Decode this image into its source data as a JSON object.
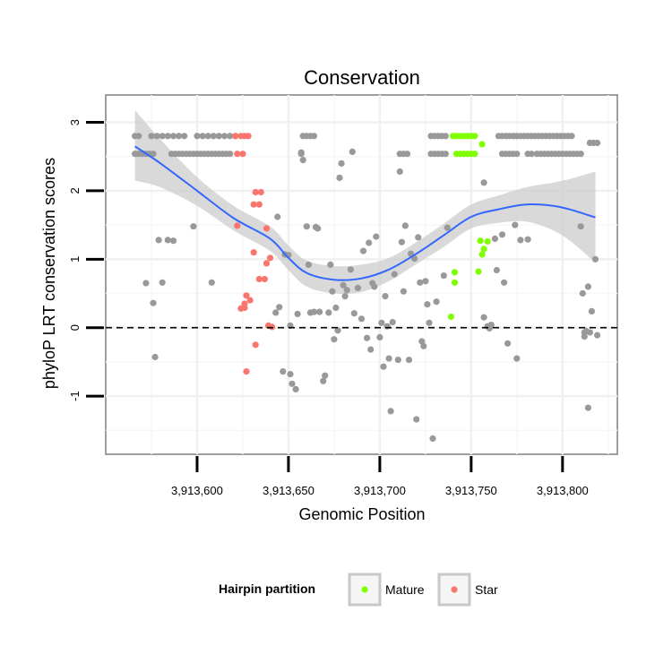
{
  "chart_data": {
    "type": "scatter",
    "title": "Conservation",
    "xlabel": "Genomic Position",
    "ylabel": "phyloP LRT conservation scores",
    "xlim": [
      3913550,
      3913830
    ],
    "ylim": [
      -1.85,
      3.4
    ],
    "x_ticks": [
      3913600,
      3913650,
      3913700,
      3913750,
      3913800
    ],
    "x_tick_labels": [
      "3,913,600",
      "3,913,650",
      "3,913,700",
      "3,913,750",
      "3,913,800"
    ],
    "y_ticks": [
      -1,
      0,
      1,
      2,
      3
    ],
    "y_tick_labels": [
      "-1",
      "0",
      "1",
      "2",
      "3"
    ],
    "reference_line": {
      "y": 0,
      "style": "dashed"
    },
    "legend": {
      "title": "Hairpin partition",
      "position": "bottom",
      "entries": [
        {
          "label": "Mature",
          "color": "#80ff00"
        },
        {
          "label": "Star",
          "color": "#f8766d"
        }
      ]
    },
    "colors": {
      "other": "#999999",
      "Mature": "#80ff00",
      "Star": "#f8766d",
      "smooth": "#3366ff",
      "band": "#cccccc"
    },
    "smooth_fit": {
      "x": [
        3913566,
        3913580,
        3913600,
        3913620,
        3913640,
        3913650,
        3913660,
        3913675,
        3913690,
        3913705,
        3913720,
        3913735,
        3913750,
        3913765,
        3913780,
        3913795,
        3913805,
        3913818
      ],
      "y": [
        2.65,
        2.4,
        2.0,
        1.6,
        1.3,
        1.02,
        0.8,
        0.7,
        0.72,
        0.85,
        1.08,
        1.35,
        1.62,
        1.73,
        1.8,
        1.78,
        1.72,
        1.61
      ],
      "lower": [
        2.15,
        2.05,
        1.78,
        1.42,
        1.12,
        0.84,
        0.6,
        0.5,
        0.52,
        0.68,
        0.93,
        1.18,
        1.45,
        1.53,
        1.55,
        1.42,
        1.25,
        0.95
      ],
      "upper": [
        3.18,
        2.75,
        2.2,
        1.78,
        1.48,
        1.2,
        0.98,
        0.9,
        0.92,
        1.02,
        1.25,
        1.52,
        1.8,
        1.93,
        2.05,
        2.12,
        2.18,
        2.28
      ]
    },
    "series": [
      {
        "name": "Other",
        "points": [
          [
            3913566,
            2.8
          ],
          [
            3913568,
            2.8
          ],
          [
            3913575,
            2.8
          ],
          [
            3913578,
            2.8
          ],
          [
            3913581,
            2.8
          ],
          [
            3913584,
            2.8
          ],
          [
            3913587,
            2.8
          ],
          [
            3913590,
            2.8
          ],
          [
            3913593,
            2.8
          ],
          [
            3913600,
            2.8
          ],
          [
            3913603,
            2.8
          ],
          [
            3913606,
            2.8
          ],
          [
            3913609,
            2.8
          ],
          [
            3913612,
            2.8
          ],
          [
            3913615,
            2.8
          ],
          [
            3913618,
            2.8
          ],
          [
            3913621,
            2.8
          ],
          [
            3913658,
            2.8
          ],
          [
            3913660,
            2.8
          ],
          [
            3913662,
            2.8
          ],
          [
            3913664,
            2.8
          ],
          [
            3913728,
            2.8
          ],
          [
            3913730,
            2.8
          ],
          [
            3913732,
            2.8
          ],
          [
            3913734,
            2.8
          ],
          [
            3913736,
            2.8
          ],
          [
            3913765,
            2.8
          ],
          [
            3913767,
            2.8
          ],
          [
            3913769,
            2.8
          ],
          [
            3913771,
            2.8
          ],
          [
            3913773,
            2.8
          ],
          [
            3913775,
            2.8
          ],
          [
            3913777,
            2.8
          ],
          [
            3913779,
            2.8
          ],
          [
            3913781,
            2.8
          ],
          [
            3913783,
            2.8
          ],
          [
            3913785,
            2.8
          ],
          [
            3913787,
            2.8
          ],
          [
            3913789,
            2.8
          ],
          [
            3913791,
            2.8
          ],
          [
            3913793,
            2.8
          ],
          [
            3913795,
            2.8
          ],
          [
            3913797,
            2.8
          ],
          [
            3913799,
            2.8
          ],
          [
            3913801,
            2.8
          ],
          [
            3913803,
            2.8
          ],
          [
            3913805,
            2.8
          ],
          [
            3913566,
            2.54
          ],
          [
            3913568,
            2.54
          ],
          [
            3913570,
            2.54
          ],
          [
            3913572,
            2.54
          ],
          [
            3913574,
            2.54
          ],
          [
            3913576,
            2.54
          ],
          [
            3913586,
            2.54
          ],
          [
            3913588,
            2.54
          ],
          [
            3913590,
            2.54
          ],
          [
            3913592,
            2.54
          ],
          [
            3913594,
            2.54
          ],
          [
            3913596,
            2.54
          ],
          [
            3913598,
            2.54
          ],
          [
            3913600,
            2.54
          ],
          [
            3913602,
            2.54
          ],
          [
            3913604,
            2.54
          ],
          [
            3913606,
            2.54
          ],
          [
            3913608,
            2.54
          ],
          [
            3913610,
            2.54
          ],
          [
            3913612,
            2.54
          ],
          [
            3913614,
            2.54
          ],
          [
            3913616,
            2.54
          ],
          [
            3913618,
            2.54
          ],
          [
            3913657,
            2.54
          ],
          [
            3913711,
            2.54
          ],
          [
            3913713,
            2.54
          ],
          [
            3913715,
            2.54
          ],
          [
            3913728,
            2.54
          ],
          [
            3913730,
            2.54
          ],
          [
            3913732,
            2.54
          ],
          [
            3913734,
            2.54
          ],
          [
            3913736,
            2.54
          ],
          [
            3913767,
            2.54
          ],
          [
            3913769,
            2.54
          ],
          [
            3913771,
            2.54
          ],
          [
            3913773,
            2.54
          ],
          [
            3913775,
            2.54
          ],
          [
            3913781,
            2.54
          ],
          [
            3913783,
            2.54
          ],
          [
            3913786,
            2.54
          ],
          [
            3913788,
            2.54
          ],
          [
            3913790,
            2.54
          ],
          [
            3913792,
            2.54
          ],
          [
            3913794,
            2.54
          ],
          [
            3913796,
            2.54
          ],
          [
            3913798,
            2.54
          ],
          [
            3913800,
            2.54
          ],
          [
            3913802,
            2.54
          ],
          [
            3913804,
            2.54
          ],
          [
            3913806,
            2.54
          ],
          [
            3913808,
            2.54
          ],
          [
            3913810,
            2.54
          ],
          [
            3913815,
            2.7
          ],
          [
            3913817,
            2.7
          ],
          [
            3913819,
            2.7
          ],
          [
            3913572,
            0.65
          ],
          [
            3913576,
            0.36
          ],
          [
            3913577,
            -0.43
          ],
          [
            3913579,
            1.28
          ],
          [
            3913581,
            0.66
          ],
          [
            3913584,
            1.28
          ],
          [
            3913587,
            1.27
          ],
          [
            3913598,
            1.48
          ],
          [
            3913608,
            0.66
          ],
          [
            3913643,
            0.22
          ],
          [
            3913644,
            1.62
          ],
          [
            3913645,
            0.3
          ],
          [
            3913647,
            -0.64
          ],
          [
            3913648,
            1.07
          ],
          [
            3913650,
            1.06
          ],
          [
            3913651,
            0.03
          ],
          [
            3913651,
            -0.68
          ],
          [
            3913652,
            -0.82
          ],
          [
            3913654,
            -0.9
          ],
          [
            3913655,
            0.2
          ],
          [
            3913657,
            2.56
          ],
          [
            3913658,
            2.45
          ],
          [
            3913660,
            1.48
          ],
          [
            3913661,
            0.92
          ],
          [
            3913662,
            0.22
          ],
          [
            3913664,
            0.23
          ],
          [
            3913665,
            1.47
          ],
          [
            3913666,
            1.45
          ],
          [
            3913667,
            0.23
          ],
          [
            3913669,
            -0.78
          ],
          [
            3913670,
            -0.7
          ],
          [
            3913672,
            0.22
          ],
          [
            3913673,
            0.92
          ],
          [
            3913674,
            0.53
          ],
          [
            3913675,
            -0.17
          ],
          [
            3913676,
            0.29
          ],
          [
            3913677,
            -0.04
          ],
          [
            3913678,
            2.19
          ],
          [
            3913679,
            2.4
          ],
          [
            3913680,
            0.62
          ],
          [
            3913681,
            0.46
          ],
          [
            3913682,
            0.55
          ],
          [
            3913684,
            0.85
          ],
          [
            3913685,
            2.57
          ],
          [
            3913686,
            0.21
          ],
          [
            3913688,
            0.58
          ],
          [
            3913690,
            0.13
          ],
          [
            3913691,
            1.12
          ],
          [
            3913693,
            -0.15
          ],
          [
            3913694,
            1.24
          ],
          [
            3913695,
            -0.32
          ],
          [
            3913696,
            0.65
          ],
          [
            3913697,
            0.6
          ],
          [
            3913698,
            1.33
          ],
          [
            3913700,
            -0.14
          ],
          [
            3913701,
            0.07
          ],
          [
            3913702,
            -0.57
          ],
          [
            3913703,
            0.46
          ],
          [
            3913704,
            0.02
          ],
          [
            3913705,
            -0.45
          ],
          [
            3913706,
            -1.22
          ],
          [
            3913707,
            0.08
          ],
          [
            3913708,
            0.78
          ],
          [
            3913710,
            -0.47
          ],
          [
            3913711,
            2.28
          ],
          [
            3913712,
            1.25
          ],
          [
            3913713,
            0.53
          ],
          [
            3913714,
            1.49
          ],
          [
            3913716,
            -0.47
          ],
          [
            3913717,
            1.08
          ],
          [
            3913719,
            1.01
          ],
          [
            3913720,
            -1.34
          ],
          [
            3913721,
            1.32
          ],
          [
            3913722,
            0.66
          ],
          [
            3913723,
            -0.2
          ],
          [
            3913724,
            -0.27
          ],
          [
            3913725,
            0.68
          ],
          [
            3913726,
            0.34
          ],
          [
            3913727,
            0.07
          ],
          [
            3913729,
            -1.62
          ],
          [
            3913731,
            0.38
          ],
          [
            3913735,
            0.76
          ],
          [
            3913737,
            1.46
          ],
          [
            3913757,
            2.12
          ],
          [
            3913757,
            0.15
          ],
          [
            3913759,
            0.02
          ],
          [
            3913760,
            -0.01
          ],
          [
            3913761,
            0.04
          ],
          [
            3913763,
            1.3
          ],
          [
            3913764,
            0.84
          ],
          [
            3913767,
            1.36
          ],
          [
            3913768,
            0.66
          ],
          [
            3913770,
            -0.23
          ],
          [
            3913774,
            1.5
          ],
          [
            3913775,
            -0.45
          ],
          [
            3913777,
            1.28
          ],
          [
            3913781,
            1.29
          ],
          [
            3913810,
            1.48
          ],
          [
            3913811,
            0.5
          ],
          [
            3913812,
            -0.07
          ],
          [
            3913812,
            -0.13
          ],
          [
            3913813,
            -0.05
          ],
          [
            3913814,
            0.6
          ],
          [
            3913814,
            -1.17
          ],
          [
            3913815,
            -0.07
          ],
          [
            3913816,
            0.24
          ],
          [
            3913818,
            1.0
          ],
          [
            3913819,
            -0.11
          ]
        ]
      },
      {
        "name": "Mature",
        "points": [
          [
            3913740,
            2.8
          ],
          [
            3913742,
            2.8
          ],
          [
            3913744,
            2.8
          ],
          [
            3913746,
            2.8
          ],
          [
            3913748,
            2.8
          ],
          [
            3913750,
            2.8
          ],
          [
            3913752,
            2.8
          ],
          [
            3913742,
            2.54
          ],
          [
            3913744,
            2.54
          ],
          [
            3913746,
            2.54
          ],
          [
            3913748,
            2.54
          ],
          [
            3913750,
            2.54
          ],
          [
            3913752,
            2.54
          ],
          [
            3913756,
            2.68
          ],
          [
            3913755,
            1.27
          ],
          [
            3913756,
            1.07
          ],
          [
            3913757,
            1.15
          ],
          [
            3913759,
            1.26
          ],
          [
            3913741,
            0.81
          ],
          [
            3913741,
            0.66
          ],
          [
            3913754,
            0.82
          ],
          [
            3913739,
            0.16
          ]
        ]
      },
      {
        "name": "Star",
        "points": [
          [
            3913621,
            2.8
          ],
          [
            3913624,
            2.8
          ],
          [
            3913626,
            2.8
          ],
          [
            3913628,
            2.8
          ],
          [
            3913622,
            2.54
          ],
          [
            3913625,
            2.54
          ],
          [
            3913632,
            1.98
          ],
          [
            3913635,
            1.98
          ],
          [
            3913631,
            1.8
          ],
          [
            3913634,
            1.8
          ],
          [
            3913622,
            1.49
          ],
          [
            3913638,
            1.45
          ],
          [
            3913631,
            1.1
          ],
          [
            3913640,
            1.02
          ],
          [
            3913638,
            0.94
          ],
          [
            3913634,
            0.71
          ],
          [
            3913637,
            0.71
          ],
          [
            3913627,
            0.47
          ],
          [
            3913629,
            0.4
          ],
          [
            3913626,
            0.35
          ],
          [
            3913626,
            0.29
          ],
          [
            3913624,
            0.28
          ],
          [
            3913639,
            0.03
          ],
          [
            3913641,
            0.01
          ],
          [
            3913632,
            -0.25
          ],
          [
            3913627,
            -0.64
          ]
        ]
      }
    ]
  }
}
